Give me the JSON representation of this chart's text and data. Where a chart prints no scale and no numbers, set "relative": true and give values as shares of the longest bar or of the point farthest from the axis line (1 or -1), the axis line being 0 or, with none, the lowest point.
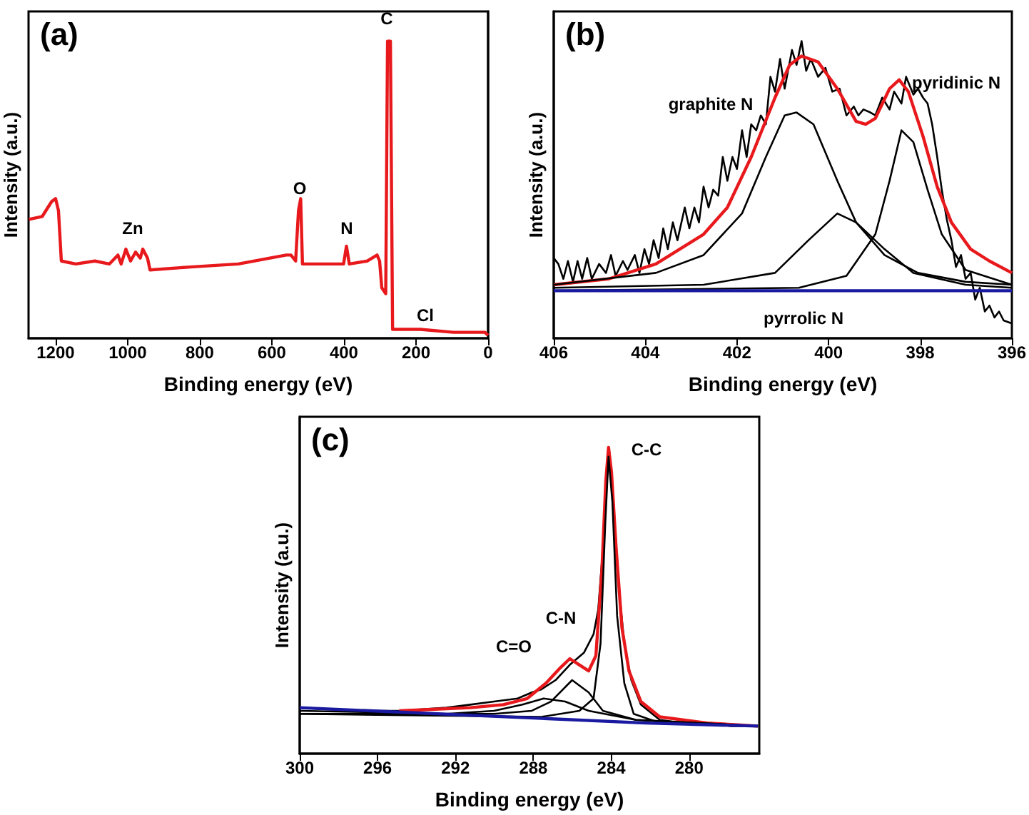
{
  "chart_data": [
    {
      "type": "line",
      "title": "(a)",
      "xlabel": "Binding energy (eV)",
      "ylabel": "Intensity (a.u.)",
      "relative": true,
      "xlim": [
        1275,
        0
      ],
      "xticks": [
        1200,
        1000,
        800,
        600,
        400,
        200,
        0
      ],
      "annotations": [
        "Zn",
        "O",
        "N",
        "C",
        "Cl"
      ],
      "series": [
        {
          "color": "#e8191c",
          "x": [
            1274,
            1237,
            1211,
            1200,
            1192,
            1184,
            1144,
            1091,
            1051,
            1027,
            1018,
            1005,
            992,
            978,
            965,
            958,
            945,
            938,
            826,
            693,
            560,
            547,
            534,
            526,
            520,
            515,
            481,
            427,
            401,
            393,
            385,
            335,
            308,
            301,
            295,
            284,
            279,
            271,
            265,
            228,
            188,
            96,
            16,
            9,
            0
          ],
          "values": [
            0.4,
            0.41,
            0.46,
            0.47,
            0.43,
            0.26,
            0.25,
            0.26,
            0.25,
            0.28,
            0.25,
            0.3,
            0.26,
            0.29,
            0.27,
            0.3,
            0.27,
            0.23,
            0.24,
            0.25,
            0.28,
            0.28,
            0.26,
            0.43,
            0.47,
            0.25,
            0.25,
            0.25,
            0.25,
            0.31,
            0.25,
            0.26,
            0.28,
            0.26,
            0.17,
            0.15,
            1.0,
            1.0,
            0.03,
            0.03,
            0.03,
            0.02,
            0.02,
            0.02,
            0.01
          ]
        }
      ]
    },
    {
      "type": "line",
      "title": "(b)",
      "xlabel": "Binding energy (eV)",
      "ylabel": "Intensity (a.u.)",
      "relative": true,
      "xlim": [
        406,
        396
      ],
      "xticks": [
        406,
        404,
        402,
        400,
        398,
        396
      ],
      "annotations": [
        "graphite N",
        "pyridinic N",
        "pyrrolic N"
      ],
      "series": [
        {
          "color": "#000000",
          "x": [
            406.0,
            405.9,
            405.79,
            405.69,
            405.58,
            405.48,
            405.38,
            405.27,
            405.17,
            405.01,
            404.86,
            404.75,
            404.65,
            404.49,
            404.39,
            404.23,
            404.13,
            404.02,
            403.92,
            403.82,
            403.71,
            403.61,
            403.51,
            403.4,
            403.3,
            403.14,
            403.04,
            402.93,
            402.83,
            402.73,
            402.62,
            402.52,
            402.41,
            402.31,
            402.21,
            402.1,
            402.0,
            401.89,
            401.79,
            401.69,
            401.58,
            401.48,
            401.37,
            401.27,
            401.17,
            401.06,
            400.96,
            400.8,
            400.7,
            400.59,
            400.49,
            400.39,
            400.23,
            400.07,
            399.92,
            399.76,
            399.61,
            399.45,
            399.35,
            399.24,
            399.09,
            398.98,
            398.83,
            398.67,
            398.57,
            398.41,
            398.31,
            398.15,
            398.05,
            397.94,
            397.84,
            397.74,
            397.63,
            397.53,
            397.42,
            397.32,
            397.22,
            397.11,
            397.01,
            396.9,
            396.8,
            396.7,
            396.59,
            396.49,
            396.38,
            396.28,
            396.18,
            396.0
          ],
          "values": [
            0.27,
            0.25,
            0.2,
            0.26,
            0.19,
            0.26,
            0.2,
            0.27,
            0.2,
            0.25,
            0.22,
            0.28,
            0.21,
            0.26,
            0.23,
            0.28,
            0.22,
            0.3,
            0.25,
            0.33,
            0.27,
            0.37,
            0.3,
            0.39,
            0.33,
            0.44,
            0.37,
            0.44,
            0.39,
            0.51,
            0.44,
            0.5,
            0.48,
            0.61,
            0.53,
            0.61,
            0.57,
            0.7,
            0.61,
            0.72,
            0.7,
            0.75,
            0.72,
            0.88,
            0.83,
            0.94,
            0.84,
            0.97,
            0.92,
            1.0,
            0.9,
            0.94,
            0.88,
            0.91,
            0.83,
            0.84,
            0.75,
            0.78,
            0.75,
            0.77,
            0.76,
            0.75,
            0.81,
            0.77,
            0.83,
            0.79,
            0.88,
            0.82,
            0.84,
            0.81,
            0.79,
            0.72,
            0.61,
            0.5,
            0.4,
            0.33,
            0.24,
            0.28,
            0.2,
            0.22,
            0.13,
            0.17,
            0.09,
            0.11,
            0.07,
            0.09,
            0.06,
            0.05
          ]
        },
        {
          "color": "#e8191c",
          "x": [
            406.0,
            404.8,
            403.77,
            402.73,
            402.21,
            401.69,
            401.17,
            400.85,
            400.59,
            400.23,
            399.81,
            399.4,
            399.19,
            398.98,
            398.67,
            398.46,
            398.26,
            397.94,
            397.63,
            397.32,
            396.9,
            396.49,
            396.0
          ],
          "values": [
            0.18,
            0.2,
            0.25,
            0.35,
            0.44,
            0.61,
            0.81,
            0.92,
            0.95,
            0.93,
            0.84,
            0.73,
            0.72,
            0.74,
            0.84,
            0.87,
            0.83,
            0.68,
            0.51,
            0.39,
            0.3,
            0.26,
            0.22
          ]
        },
        {
          "color": "#000000",
          "x": [
            406.0,
            403.77,
            402.73,
            401.89,
            401.37,
            400.96,
            400.7,
            400.33,
            399.81,
            399.4,
            398.78,
            398.05,
            397.01,
            396.0
          ],
          "values": [
            0.18,
            0.22,
            0.28,
            0.42,
            0.61,
            0.75,
            0.76,
            0.72,
            0.53,
            0.39,
            0.28,
            0.22,
            0.19,
            0.18
          ]
        },
        {
          "color": "#000000",
          "x": [
            406.0,
            402.73,
            401.17,
            400.44,
            399.81,
            399.4,
            398.78,
            398.15,
            397.01,
            396.0
          ],
          "values": [
            0.17,
            0.18,
            0.22,
            0.33,
            0.42,
            0.39,
            0.3,
            0.22,
            0.18,
            0.17
          ]
        },
        {
          "color": "#000000",
          "x": [
            406.0,
            400.65,
            399.61,
            398.98,
            398.67,
            398.41,
            398.15,
            397.84,
            397.53,
            397.01,
            396.0
          ],
          "values": [
            0.16,
            0.17,
            0.21,
            0.35,
            0.53,
            0.7,
            0.66,
            0.5,
            0.35,
            0.23,
            0.18
          ]
        },
        {
          "color": "#1a1aa0",
          "x": [
            406,
            396
          ],
          "values": [
            0.16,
            0.16
          ]
        }
      ]
    },
    {
      "type": "line",
      "title": "(c)",
      "xlabel": "Binding energy (eV)",
      "ylabel": "Intensity (a.u.)",
      "relative": true,
      "xlim": [
        300,
        276.4
      ],
      "xticks": [
        300,
        296,
        292,
        288,
        284,
        280
      ],
      "annotations": [
        "C-C",
        "C-N",
        "C=O"
      ],
      "series": [
        {
          "color": "#000000",
          "x": [
            300,
            297.32,
            294.89,
            292.46,
            291.24,
            290.02,
            288.81,
            288.08,
            287.59,
            286.86,
            286.13,
            285.4,
            284.91,
            284.67,
            284.43,
            284.23,
            284.14,
            284.04,
            283.82,
            283.58,
            283.33,
            282.97,
            282.48,
            281.51,
            280.29,
            279.08,
            277.86,
            276.47
          ],
          "values": [
            0.15,
            0.14,
            0.14,
            0.15,
            0.16,
            0.17,
            0.18,
            0.2,
            0.21,
            0.24,
            0.29,
            0.33,
            0.39,
            0.47,
            0.67,
            0.89,
            0.98,
            0.95,
            0.75,
            0.52,
            0.36,
            0.24,
            0.16,
            0.11,
            0.1,
            0.1,
            0.09,
            0.09
          ]
        },
        {
          "color": "#e8191c",
          "x": [
            294.89,
            291.24,
            289.54,
            288.32,
            287.35,
            286.62,
            286.13,
            285.64,
            285.16,
            284.79,
            284.48,
            284.28,
            284.14,
            283.99,
            283.75,
            283.45,
            283.09,
            282.48,
            281.51,
            279.08,
            276.47
          ],
          "values": [
            0.14,
            0.15,
            0.16,
            0.18,
            0.23,
            0.28,
            0.31,
            0.29,
            0.27,
            0.32,
            0.6,
            0.89,
            1.0,
            0.92,
            0.67,
            0.41,
            0.27,
            0.17,
            0.12,
            0.1,
            0.09
          ]
        },
        {
          "color": "#000000",
          "x": [
            300,
            292.46,
            290.02,
            288.56,
            287.47,
            286.37,
            285.16,
            282.73,
            276.47
          ],
          "values": [
            0.14,
            0.13,
            0.14,
            0.16,
            0.18,
            0.17,
            0.14,
            0.11,
            0.09
          ]
        },
        {
          "color": "#000000",
          "x": [
            300,
            290.02,
            288.08,
            287.1,
            286.01,
            285.16,
            284.43,
            282.73,
            276.47
          ],
          "values": [
            0.13,
            0.13,
            0.14,
            0.17,
            0.24,
            0.2,
            0.14,
            0.11,
            0.09
          ]
        },
        {
          "color": "#000000",
          "x": [
            300,
            287.59,
            285.64,
            284.91,
            284.55,
            284.31,
            284.14,
            283.94,
            283.7,
            283.33,
            282.85,
            281.51,
            276.47
          ],
          "values": [
            0.13,
            0.12,
            0.14,
            0.18,
            0.36,
            0.75,
            0.97,
            0.82,
            0.45,
            0.23,
            0.13,
            0.1,
            0.09
          ]
        },
        {
          "color": "#1a1aa0",
          "x": [
            300,
            282.24,
            276.47
          ],
          "values": [
            0.15,
            0.1,
            0.09
          ]
        }
      ]
    }
  ]
}
